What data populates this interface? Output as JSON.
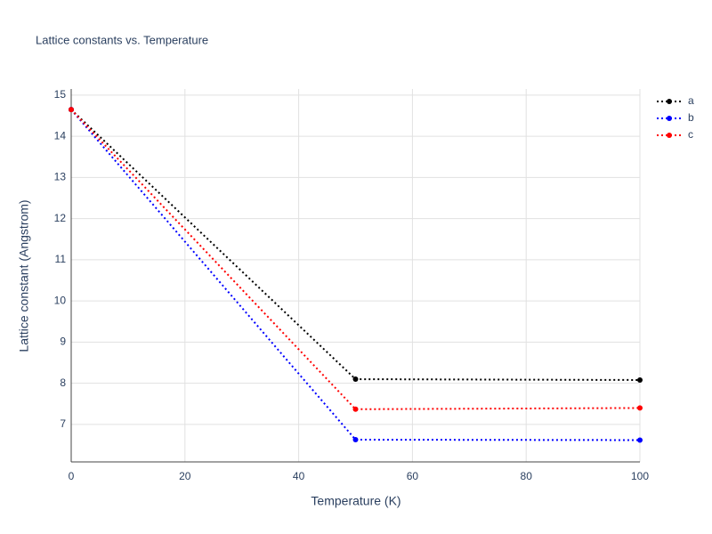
{
  "chart_data": {
    "type": "line",
    "title": "Lattice constants vs. Temperature",
    "x_label": "Temperature (K)",
    "y_label": "Lattice constant (Angstrom)",
    "x": [
      0,
      50,
      100
    ],
    "series": [
      {
        "name": "a",
        "color": "#000000",
        "values": [
          14.65,
          8.1,
          8.08
        ]
      },
      {
        "name": "b",
        "color": "#0000ff",
        "values": [
          14.65,
          6.63,
          6.62
        ]
      },
      {
        "name": "c",
        "color": "#ff0000",
        "values": [
          14.65,
          7.37,
          7.4
        ]
      }
    ],
    "xlim": [
      0,
      100
    ],
    "xticks": [
      0,
      20,
      40,
      60,
      80,
      100
    ],
    "ylim": [
      6.09,
      15.15
    ],
    "yticks": [
      7,
      8,
      9,
      10,
      11,
      12,
      13,
      14,
      15
    ],
    "grid": true,
    "legend": "top-right"
  }
}
